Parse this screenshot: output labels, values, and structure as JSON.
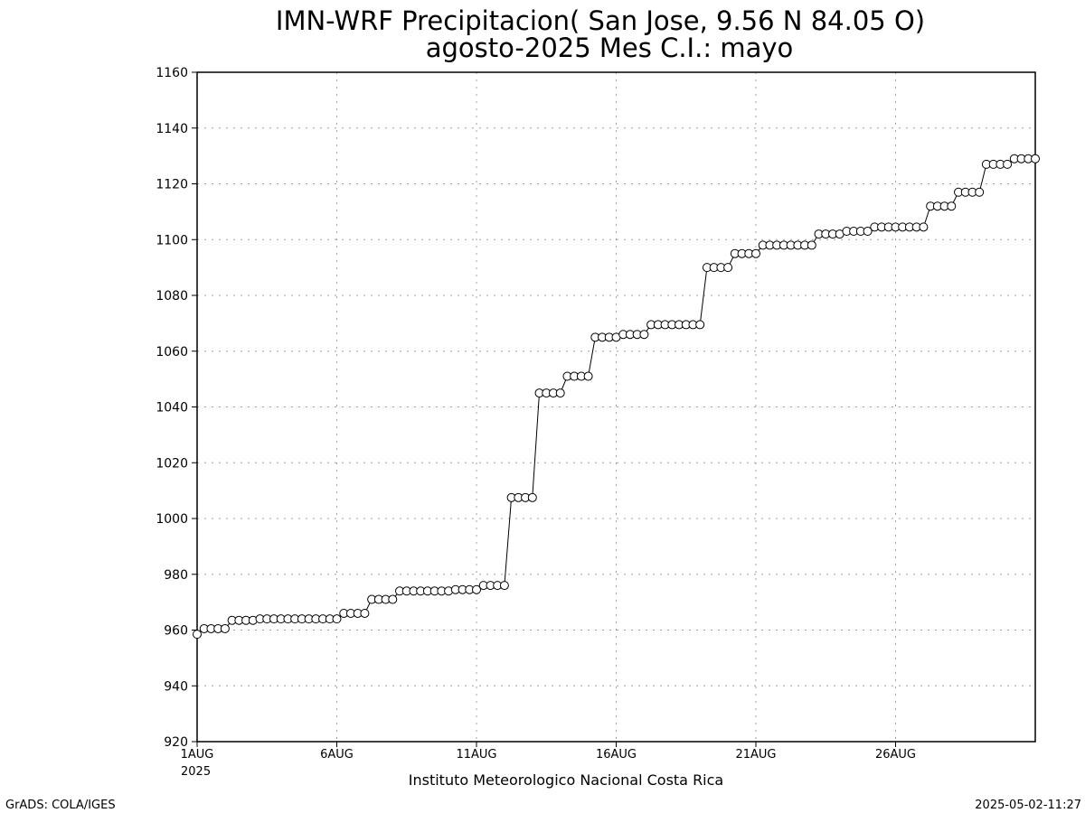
{
  "chart_data": {
    "type": "line",
    "title": "IMN-WRF  Precipitacion( San Jose, 9.56  N 84.05  O)",
    "subtitle": "agosto-2025 Mes C.I.: mayo",
    "xlabel": "",
    "ylabel": "",
    "ylim": [
      920,
      1160
    ],
    "yticks": [
      "920",
      "940",
      "960",
      "980",
      "1000",
      "1020",
      "1040",
      "1060",
      "1080",
      "1100",
      "1120",
      "1140",
      "1160"
    ],
    "xlim": [
      1,
      31
    ],
    "xticks": [
      {
        "day": 1,
        "label": "1AUG"
      },
      {
        "day": 6,
        "label": "6AUG"
      },
      {
        "day": 11,
        "label": "11AUG"
      },
      {
        "day": 16,
        "label": "16AUG"
      },
      {
        "day": 21,
        "label": "21AUG"
      },
      {
        "day": 26,
        "label": "26AUG"
      }
    ],
    "year_label": "2025",
    "grid": true,
    "marker": "open-circle",
    "series": [
      {
        "x": [
          1.0,
          1.25,
          1.5,
          1.75,
          2.0,
          2.25,
          2.5,
          2.75,
          3.0,
          3.25,
          3.5,
          3.75,
          4.0,
          4.25,
          4.5,
          4.75,
          5.0,
          5.25,
          5.5,
          5.75,
          6.0,
          6.25,
          6.5,
          6.75,
          7.0,
          7.25,
          7.5,
          7.75,
          8.0,
          8.25,
          8.5,
          8.75,
          9.0,
          9.25,
          9.5,
          9.75,
          10.0,
          10.25,
          10.5,
          10.75,
          11.0,
          11.25,
          11.5,
          11.75,
          12.0,
          12.25,
          12.5,
          12.75,
          13.0,
          13.25,
          13.5,
          13.75,
          14.0,
          14.25,
          14.5,
          14.75,
          15.0,
          15.25,
          15.5,
          15.75,
          16.0,
          16.25,
          16.5,
          16.75,
          17.0,
          17.25,
          17.5,
          17.75,
          18.0,
          18.25,
          18.5,
          18.75,
          19.0,
          19.25,
          19.5,
          19.75,
          20.0,
          20.25,
          20.5,
          20.75,
          21.0,
          21.25,
          21.5,
          21.75,
          22.0,
          22.25,
          22.5,
          22.75,
          23.0,
          23.25,
          23.5,
          23.75,
          24.0,
          24.25,
          24.5,
          24.75,
          25.0,
          25.25,
          25.5,
          25.75,
          26.0,
          26.25,
          26.5,
          26.75,
          27.0,
          27.25,
          27.5,
          27.75,
          28.0,
          28.25,
          28.5,
          28.75,
          29.0,
          29.25,
          29.5,
          29.75,
          30.0,
          30.25,
          30.5,
          30.75,
          31.0
        ],
        "values": [
          958.5,
          960.5,
          960.5,
          960.5,
          960.5,
          963.5,
          963.5,
          963.5,
          963.5,
          964,
          964,
          964,
          964,
          964,
          964,
          964,
          964,
          964,
          964,
          964,
          964,
          966,
          966,
          966,
          966,
          971,
          971,
          971,
          971,
          974,
          974,
          974,
          974,
          974,
          974,
          974,
          974,
          974.5,
          974.5,
          974.5,
          974.5,
          976,
          976,
          976,
          976,
          1007.5,
          1007.5,
          1007.5,
          1007.5,
          1045,
          1045,
          1045,
          1045,
          1051,
          1051,
          1051,
          1051,
          1065,
          1065,
          1065,
          1065,
          1066,
          1066,
          1066,
          1066,
          1069.5,
          1069.5,
          1069.5,
          1069.5,
          1069.5,
          1069.5,
          1069.5,
          1069.5,
          1090,
          1090,
          1090,
          1090,
          1095,
          1095,
          1095,
          1095,
          1098,
          1098,
          1098,
          1098,
          1098,
          1098,
          1098,
          1098,
          1102,
          1102,
          1102,
          1102,
          1103,
          1103,
          1103,
          1103,
          1104.5,
          1104.5,
          1104.5,
          1104.5,
          1104.5,
          1104.5,
          1104.5,
          1104.5,
          1112,
          1112,
          1112,
          1112,
          1117,
          1117,
          1117,
          1117,
          1127,
          1127,
          1127,
          1127,
          1129,
          1129,
          1129,
          1129
        ]
      }
    ]
  },
  "footer": {
    "institution": "Instituto Meteorologico Nacional Costa Rica",
    "credit_left": "GrADS: COLA/IGES",
    "credit_right": "2025-05-02-11:27"
  },
  "colors": {
    "axis": "#000000",
    "grid": "#a0a0a0",
    "line": "#000000",
    "marker_fill": "#ffffff"
  }
}
